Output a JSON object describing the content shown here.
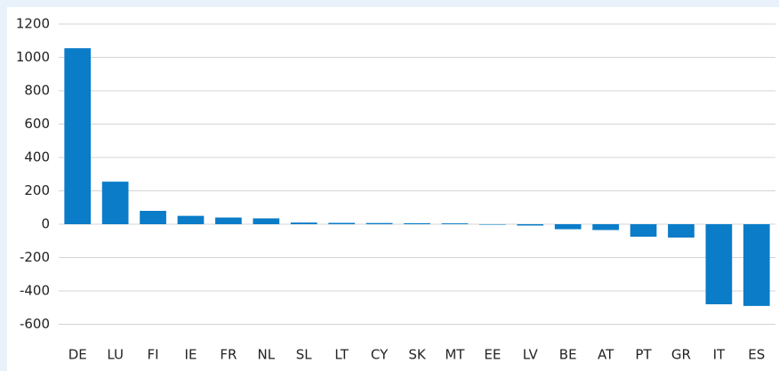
{
  "chart_data": {
    "type": "bar",
    "categories": [
      "DE",
      "LU",
      "FI",
      "IE",
      "FR",
      "NL",
      "SL",
      "LT",
      "CY",
      "SK",
      "MT",
      "EE",
      "LV",
      "BE",
      "AT",
      "PT",
      "GR",
      "IT",
      "ES"
    ],
    "values": [
      1055,
      255,
      80,
      50,
      40,
      35,
      10,
      8,
      7,
      6,
      5,
      -3,
      -8,
      -30,
      -35,
      -75,
      -80,
      -480,
      -490
    ],
    "color": "#0a7cc8",
    "ylim": [
      -600,
      1200
    ],
    "yticks": [
      -600,
      -400,
      -200,
      0,
      200,
      400,
      600,
      800,
      1000,
      1200
    ],
    "grid": true
  }
}
